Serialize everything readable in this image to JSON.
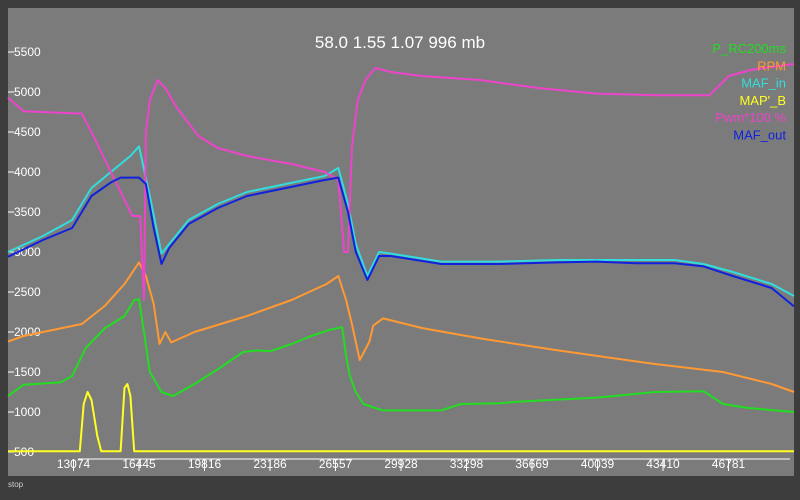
{
  "header": {
    "readout": "58.0 1.55 1.07 996 mb"
  },
  "status": {
    "text": "stop"
  },
  "colors": {
    "background": "#7b7b7b",
    "frame": "#3d3d3d",
    "axis_text": "#ffffff"
  },
  "chart_data": {
    "type": "line",
    "title": "",
    "xlabel": "",
    "ylabel": "",
    "xlim": [
      9703,
      50152
    ],
    "ylim": [
      200,
      6050
    ],
    "yticks": [
      500,
      1000,
      1500,
      2000,
      2500,
      3000,
      3500,
      4000,
      4500,
      5000,
      5500
    ],
    "xticks": [
      13074,
      16445,
      19816,
      23186,
      26557,
      29928,
      33298,
      36669,
      40039,
      43410,
      46781
    ],
    "legend_position": "top-right",
    "grid": false,
    "series": [
      {
        "name": "P_RC200ms",
        "color": "#22dd22",
        "points": [
          [
            9703,
            1200
          ],
          [
            10500,
            1340
          ],
          [
            12400,
            1370
          ],
          [
            13000,
            1450
          ],
          [
            13700,
            1800
          ],
          [
            14700,
            2050
          ],
          [
            15700,
            2200
          ],
          [
            16200,
            2400
          ],
          [
            16445,
            2410
          ],
          [
            16700,
            2000
          ],
          [
            17000,
            1500
          ],
          [
            17600,
            1250
          ],
          [
            18200,
            1200
          ],
          [
            19300,
            1350
          ],
          [
            20600,
            1550
          ],
          [
            21800,
            1750
          ],
          [
            22500,
            1770
          ],
          [
            23200,
            1760
          ],
          [
            24300,
            1850
          ],
          [
            25300,
            1950
          ],
          [
            26300,
            2030
          ],
          [
            26900,
            2060
          ],
          [
            27100,
            1700
          ],
          [
            27300,
            1450
          ],
          [
            27600,
            1250
          ],
          [
            28000,
            1100
          ],
          [
            28600,
            1050
          ],
          [
            29000,
            1020
          ],
          [
            32000,
            1020
          ],
          [
            33000,
            1100
          ],
          [
            35000,
            1110
          ],
          [
            36000,
            1130
          ],
          [
            40000,
            1180
          ],
          [
            43000,
            1250
          ],
          [
            45500,
            1260
          ],
          [
            46500,
            1100
          ],
          [
            47800,
            1050
          ],
          [
            50152,
            1000
          ]
        ]
      },
      {
        "name": "RPM",
        "color": "#ff9933",
        "points": [
          [
            9703,
            1880
          ],
          [
            10500,
            1950
          ],
          [
            13500,
            2100
          ],
          [
            14700,
            2330
          ],
          [
            15700,
            2600
          ],
          [
            16445,
            2870
          ],
          [
            16800,
            2700
          ],
          [
            17200,
            2350
          ],
          [
            17500,
            1850
          ],
          [
            17800,
            2000
          ],
          [
            18100,
            1870
          ],
          [
            19300,
            2000
          ],
          [
            22000,
            2200
          ],
          [
            24300,
            2400
          ],
          [
            26100,
            2600
          ],
          [
            26700,
            2700
          ],
          [
            27100,
            2400
          ],
          [
            27400,
            2100
          ],
          [
            27800,
            1650
          ],
          [
            28300,
            1880
          ],
          [
            28500,
            2080
          ],
          [
            29000,
            2170
          ],
          [
            31000,
            2050
          ],
          [
            34000,
            1920
          ],
          [
            38000,
            1770
          ],
          [
            43000,
            1600
          ],
          [
            46500,
            1500
          ],
          [
            49000,
            1350
          ],
          [
            50152,
            1250
          ]
        ]
      },
      {
        "name": "MAF_in",
        "color": "#33dddd",
        "points": [
          [
            9703,
            3000
          ],
          [
            11500,
            3200
          ],
          [
            13000,
            3400
          ],
          [
            14000,
            3800
          ],
          [
            15000,
            4000
          ],
          [
            16000,
            4200
          ],
          [
            16445,
            4320
          ],
          [
            17000,
            3700
          ],
          [
            17600,
            2980
          ],
          [
            18000,
            3100
          ],
          [
            19000,
            3400
          ],
          [
            20500,
            3600
          ],
          [
            22000,
            3750
          ],
          [
            24000,
            3850
          ],
          [
            26000,
            3950
          ],
          [
            26700,
            4050
          ],
          [
            27200,
            3600
          ],
          [
            27600,
            3100
          ],
          [
            28200,
            2700
          ],
          [
            28800,
            3000
          ],
          [
            29400,
            2980
          ],
          [
            32000,
            2880
          ],
          [
            35000,
            2880
          ],
          [
            38000,
            2900
          ],
          [
            40000,
            2900
          ],
          [
            42000,
            2900
          ],
          [
            44000,
            2900
          ],
          [
            45500,
            2850
          ],
          [
            47000,
            2750
          ],
          [
            49000,
            2600
          ],
          [
            50152,
            2450
          ]
        ]
      },
      {
        "name": "MAP'_B",
        "color": "#ffff22",
        "points": [
          [
            9703,
            510
          ],
          [
            13400,
            510
          ],
          [
            13600,
            1100
          ],
          [
            13800,
            1250
          ],
          [
            14000,
            1150
          ],
          [
            14300,
            700
          ],
          [
            14500,
            510
          ],
          [
            15500,
            510
          ],
          [
            15700,
            1300
          ],
          [
            15850,
            1350
          ],
          [
            16000,
            1200
          ],
          [
            16200,
            510
          ],
          [
            50152,
            510
          ]
        ]
      },
      {
        "name": "Pwm*100 %",
        "color": "#ee44cc",
        "points": [
          [
            9703,
            4930
          ],
          [
            10500,
            4760
          ],
          [
            13500,
            4730
          ],
          [
            14000,
            4500
          ],
          [
            15000,
            4000
          ],
          [
            15800,
            3600
          ],
          [
            16100,
            3450
          ],
          [
            16500,
            3450
          ],
          [
            16700,
            2400
          ],
          [
            16800,
            4500
          ],
          [
            17000,
            4900
          ],
          [
            17400,
            5150
          ],
          [
            17800,
            5050
          ],
          [
            18400,
            4800
          ],
          [
            19500,
            4450
          ],
          [
            20500,
            4300
          ],
          [
            22000,
            4200
          ],
          [
            24300,
            4100
          ],
          [
            26000,
            4000
          ],
          [
            26700,
            3900
          ],
          [
            27000,
            3000
          ],
          [
            27200,
            3000
          ],
          [
            27400,
            4300
          ],
          [
            27700,
            4900
          ],
          [
            28100,
            5150
          ],
          [
            28600,
            5300
          ],
          [
            29400,
            5250
          ],
          [
            31000,
            5200
          ],
          [
            34000,
            5150
          ],
          [
            37000,
            5050
          ],
          [
            40000,
            4980
          ],
          [
            43000,
            4960
          ],
          [
            45800,
            4960
          ],
          [
            46800,
            5200
          ],
          [
            48000,
            5280
          ],
          [
            50152,
            5350
          ]
        ]
      },
      {
        "name": "MAF_out",
        "color": "#1122dd",
        "points": [
          [
            9703,
            2940
          ],
          [
            11500,
            3150
          ],
          [
            13000,
            3300
          ],
          [
            14000,
            3700
          ],
          [
            15000,
            3870
          ],
          [
            15500,
            3930
          ],
          [
            16445,
            3930
          ],
          [
            16800,
            3850
          ],
          [
            17200,
            3300
          ],
          [
            17600,
            2850
          ],
          [
            18000,
            3050
          ],
          [
            19000,
            3350
          ],
          [
            20500,
            3550
          ],
          [
            22000,
            3700
          ],
          [
            24000,
            3800
          ],
          [
            26000,
            3900
          ],
          [
            26700,
            3930
          ],
          [
            27200,
            3500
          ],
          [
            27600,
            3000
          ],
          [
            28200,
            2650
          ],
          [
            28800,
            2950
          ],
          [
            29400,
            2950
          ],
          [
            32000,
            2850
          ],
          [
            35000,
            2850
          ],
          [
            38000,
            2870
          ],
          [
            40000,
            2880
          ],
          [
            42000,
            2860
          ],
          [
            44000,
            2860
          ],
          [
            45500,
            2820
          ],
          [
            47000,
            2700
          ],
          [
            49000,
            2550
          ],
          [
            50152,
            2320
          ]
        ]
      }
    ]
  }
}
